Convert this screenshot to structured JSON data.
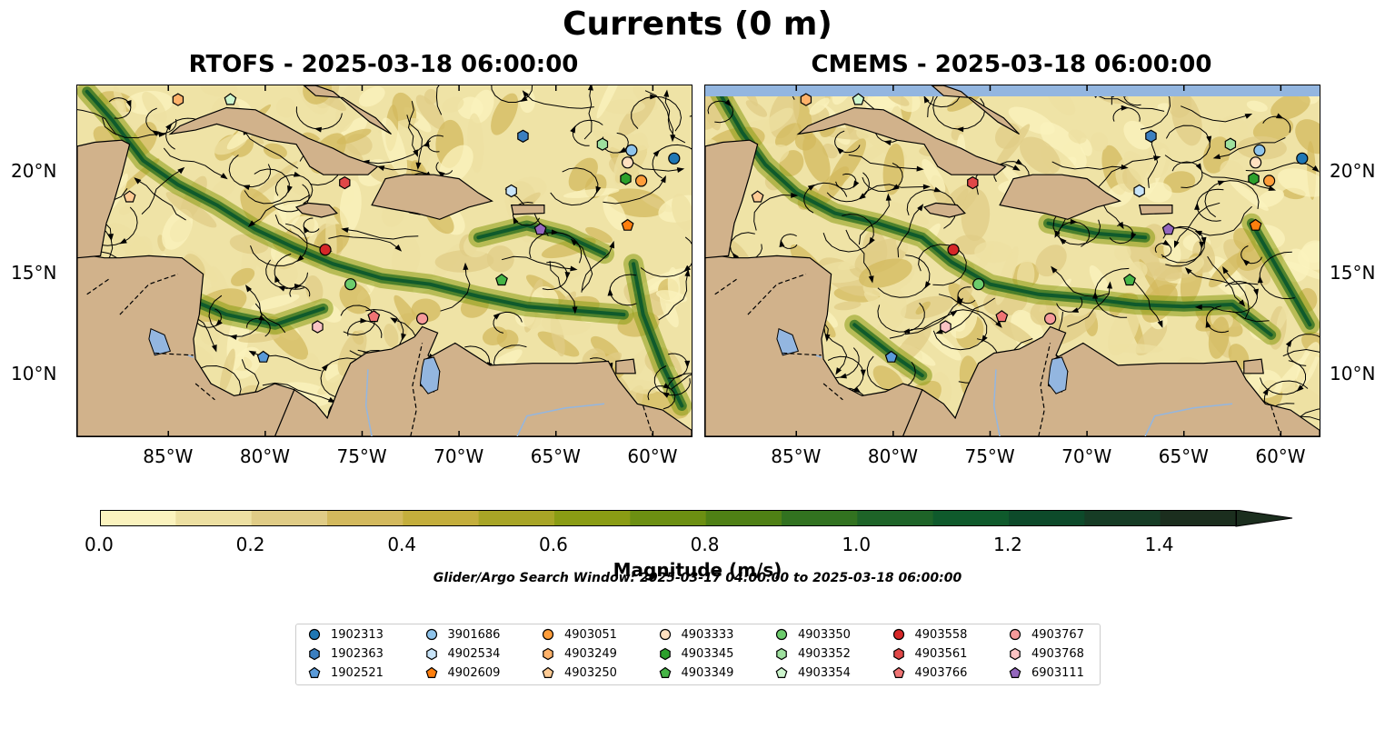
{
  "title": "Currents (0 m)",
  "panels": [
    {
      "title": "RTOFS - 2025-03-18 06:00:00"
    },
    {
      "title": "CMEMS - 2025-03-18 06:00:00"
    }
  ],
  "axes": {
    "lon_ticks": [
      "85°W",
      "80°W",
      "75°W",
      "70°W",
      "65°W",
      "60°W"
    ],
    "lat_ticks": [
      "20°N",
      "15°N",
      "10°N"
    ],
    "extent": {
      "lon_min": -89.7,
      "lon_max": -58.0,
      "lat_min": 7.0,
      "lat_max": 24.3
    }
  },
  "colorbar": {
    "label": "Magnitude (m/s)",
    "tick_labels": [
      "0.0",
      "0.2",
      "0.4",
      "0.6",
      "0.8",
      "1.0",
      "1.2",
      "1.4"
    ],
    "ticks": [
      0,
      0.2,
      0.4,
      0.6,
      0.8,
      1.0,
      1.2,
      1.4
    ],
    "vmin": 0,
    "vmax": 1.5,
    "step": 0.1,
    "extend": "max",
    "colors": [
      "#fbf3be",
      "#ede0a2",
      "#e0cc86",
      "#d3b95d",
      "#c4ae3c",
      "#a8a526",
      "#8a9c14",
      "#6c8f12",
      "#4f8015",
      "#327220",
      "#1e6428",
      "#0f5a2c",
      "#0d4a2a",
      "#163c25",
      "#1b2e1e"
    ]
  },
  "search_window": "Glider/Argo Search Window: 2025-03-17 04:00:00 to 2025-03-18 06:00:00",
  "map_colors": {
    "land": "#d1b28b",
    "water_body": "#93b6e0",
    "ocean_base": "#efe3a6"
  },
  "floats": [
    {
      "id": "1902313",
      "marker": "circle",
      "color": "#1f77b4",
      "lon": -58.9,
      "lat": 20.7
    },
    {
      "id": "1902363",
      "marker": "hexagon",
      "color": "#3b7fc0",
      "lon": -66.7,
      "lat": 21.8
    },
    {
      "id": "1902521",
      "marker": "pentagon",
      "color": "#5a9ad8",
      "lon": -80.1,
      "lat": 10.9
    },
    {
      "id": "3901686",
      "marker": "circle",
      "color": "#8ec3ea",
      "lon": -61.1,
      "lat": 21.1
    },
    {
      "id": "4902534",
      "marker": "hexagon",
      "color": "#c8e4f8",
      "lon": -67.3,
      "lat": 19.1
    },
    {
      "id": "4902609",
      "marker": "pentagon",
      "color": "#ff7f0e",
      "lon": -61.3,
      "lat": 17.4
    },
    {
      "id": "4903051",
      "marker": "circle",
      "color": "#ff9d3a",
      "lon": -60.6,
      "lat": 19.6
    },
    {
      "id": "4903249",
      "marker": "hexagon",
      "color": "#ffb26a",
      "lon": -84.5,
      "lat": 23.6
    },
    {
      "id": "4903250",
      "marker": "pentagon",
      "color": "#ffcb94",
      "lon": -87.0,
      "lat": 18.8
    },
    {
      "id": "4903333",
      "marker": "circle",
      "color": "#ffe0c0",
      "lon": -61.3,
      "lat": 20.5
    },
    {
      "id": "4903345",
      "marker": "hexagon",
      "color": "#2ca02c",
      "lon": -61.4,
      "lat": 19.7
    },
    {
      "id": "4903349",
      "marker": "pentagon",
      "color": "#46b446",
      "lon": -67.8,
      "lat": 14.7
    },
    {
      "id": "4903350",
      "marker": "circle",
      "color": "#6ccc6c",
      "lon": -75.6,
      "lat": 14.5
    },
    {
      "id": "4903352",
      "marker": "hexagon",
      "color": "#9ee09e",
      "lon": -62.6,
      "lat": 21.4
    },
    {
      "id": "4903354",
      "marker": "pentagon",
      "color": "#cdf5cd",
      "lon": -81.8,
      "lat": 23.6
    },
    {
      "id": "4903558",
      "marker": "circle",
      "color": "#d62728",
      "lon": -76.9,
      "lat": 16.2
    },
    {
      "id": "4903561",
      "marker": "hexagon",
      "color": "#e04848",
      "lon": -75.9,
      "lat": 19.5
    },
    {
      "id": "4903766",
      "marker": "pentagon",
      "color": "#f07474",
      "lon": -74.4,
      "lat": 12.9
    },
    {
      "id": "4903767",
      "marker": "circle",
      "color": "#f59a9a",
      "lon": -71.9,
      "lat": 12.8
    },
    {
      "id": "4903768",
      "marker": "hexagon",
      "color": "#fac3c3",
      "lon": -77.3,
      "lat": 12.4
    },
    {
      "id": "6903111",
      "marker": "pentagon",
      "color": "#9467bd",
      "lon": -65.8,
      "lat": 17.2
    }
  ]
}
